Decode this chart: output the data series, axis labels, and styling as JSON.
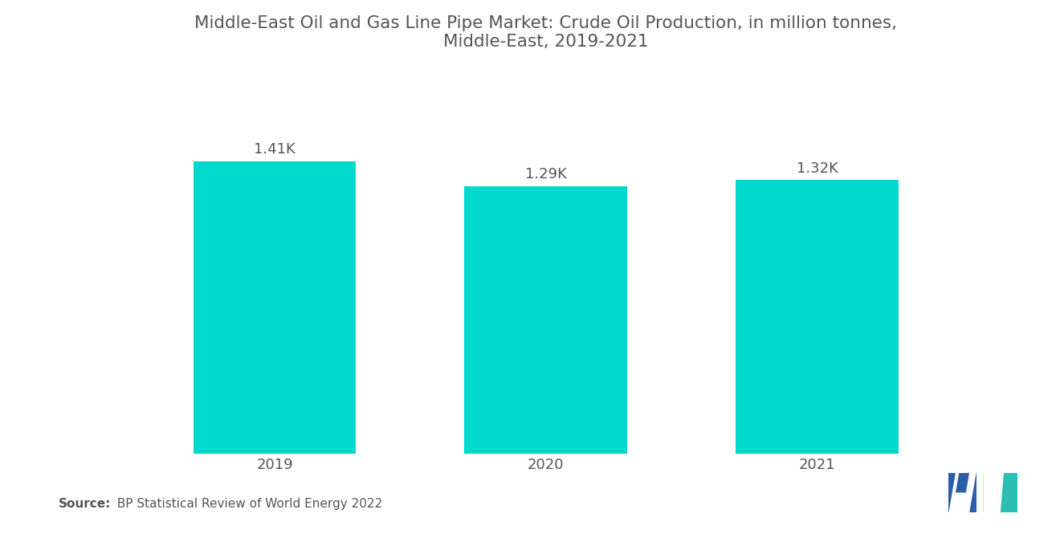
{
  "title_line1": "Middle-East Oil and Gas Line Pipe Market: Crude Oil Production, in million tonnes,",
  "title_line2": "Middle-East, 2019-2021",
  "categories": [
    "2019",
    "2020",
    "2021"
  ],
  "values": [
    1410,
    1290,
    1320
  ],
  "labels": [
    "1.41K",
    "1.29K",
    "1.32K"
  ],
  "bar_color": "#00D9CC",
  "background_color": "#ffffff",
  "title_fontsize": 15.5,
  "label_fontsize": 13,
  "tick_fontsize": 13,
  "source_bold": "Source:",
  "source_rest": "  BP Statistical Review of World Energy 2022",
  "bar_width": 0.6,
  "ylim": [
    0,
    1800
  ],
  "text_color": "#555555"
}
